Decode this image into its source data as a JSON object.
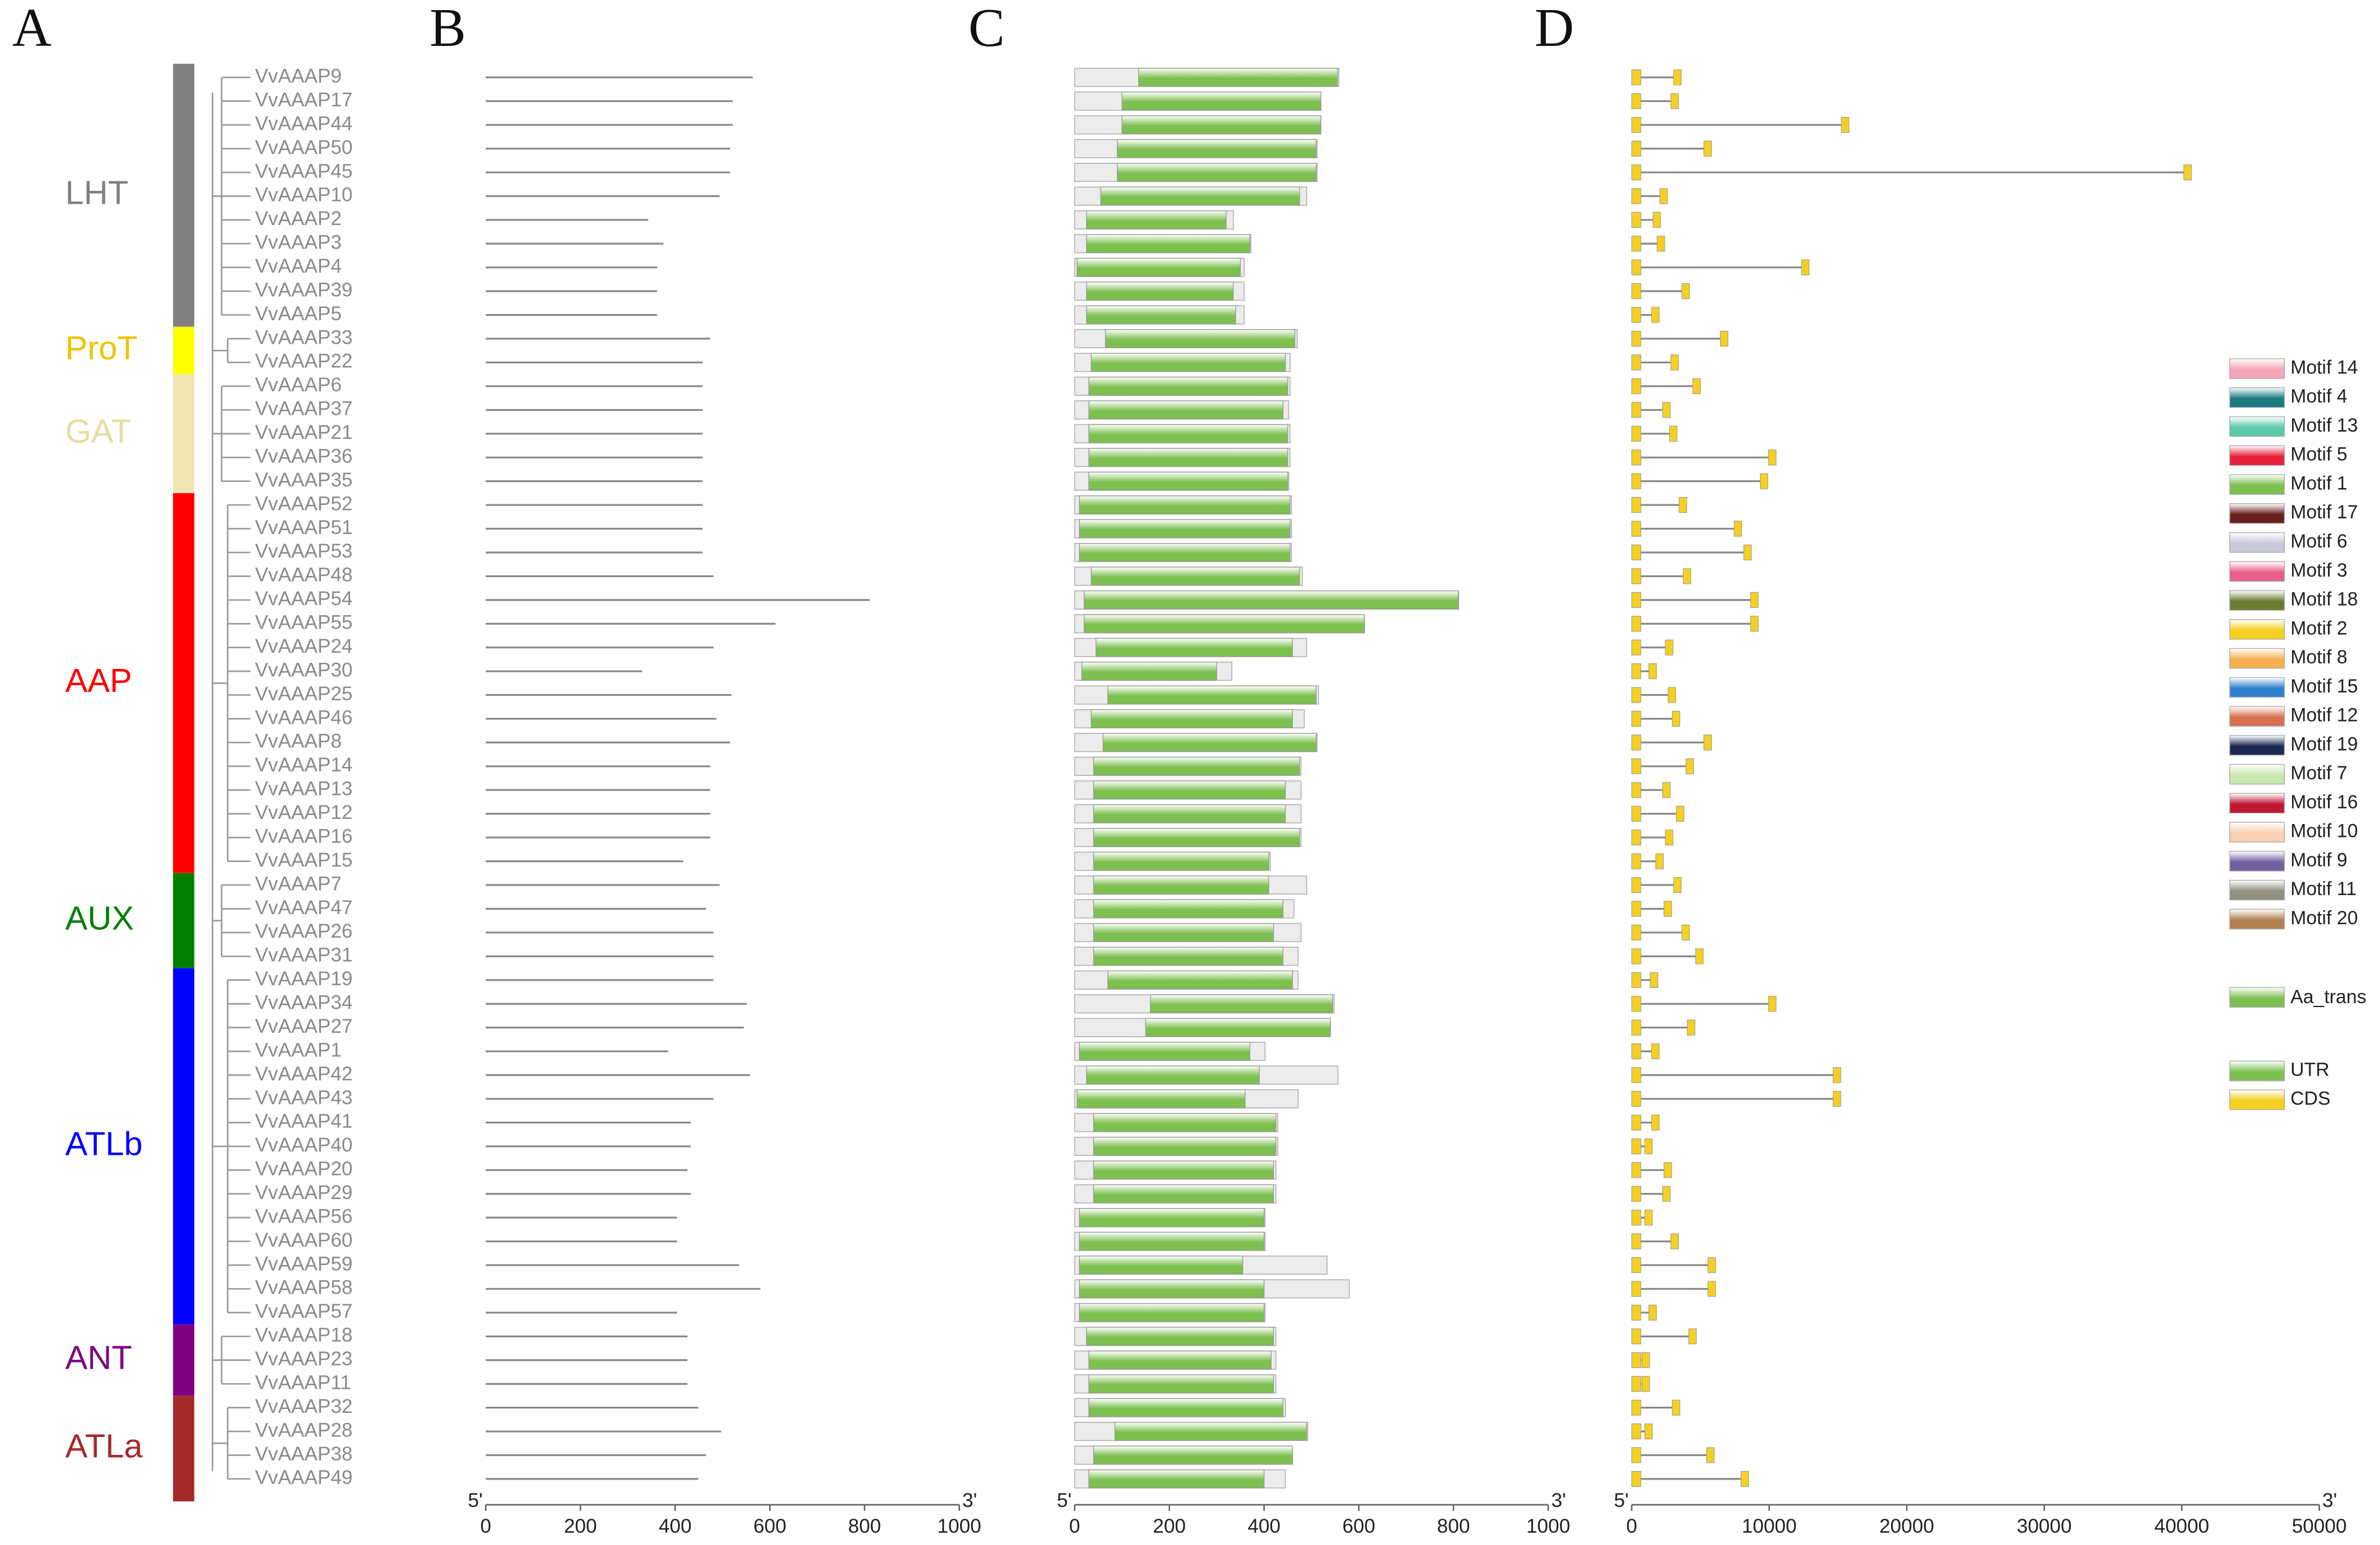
{
  "panel_labels": [
    "A",
    "B",
    "C",
    "D"
  ],
  "genes": [
    "VvAAAP9",
    "VvAAAP17",
    "VvAAAP44",
    "VvAAAP50",
    "VvAAAP45",
    "VvAAAP10",
    "VvAAAP2",
    "VvAAAP3",
    "VvAAAP4",
    "VvAAAP39",
    "VvAAAP5",
    "VvAAAP33",
    "VvAAAP22",
    "VvAAAP6",
    "VvAAAP37",
    "VvAAAP21",
    "VvAAAP36",
    "VvAAAP35",
    "VvAAAP52",
    "VvAAAP51",
    "VvAAAP53",
    "VvAAAP48",
    "VvAAAP54",
    "VvAAAP55",
    "VvAAAP24",
    "VvAAAP30",
    "VvAAAP25",
    "VvAAAP46",
    "VvAAAP8",
    "VvAAAP14",
    "VvAAAP13",
    "VvAAAP12",
    "VvAAAP16",
    "VvAAAP15",
    "VvAAAP7",
    "VvAAAP47",
    "VvAAAP26",
    "VvAAAP31",
    "VvAAAP19",
    "VvAAAP34",
    "VvAAAP27",
    "VvAAAP1",
    "VvAAAP42",
    "VvAAAP43",
    "VvAAAP41",
    "VvAAAP40",
    "VvAAAP20",
    "VvAAAP29",
    "VvAAAP56",
    "VvAAAP60",
    "VvAAAP59",
    "VvAAAP58",
    "VvAAAP57",
    "VvAAAP18",
    "VvAAAP23",
    "VvAAAP11",
    "VvAAAP32",
    "VvAAAP28",
    "VvAAAP38",
    "VvAAAP49"
  ],
  "groups": [
    {
      "name": "LHT",
      "color": "#808080",
      "text_color": "#808080",
      "rows": [
        0,
        10
      ]
    },
    {
      "name": "ProT",
      "color": "#ffff00",
      "text_color": "#f2c200",
      "rows": [
        11,
        12
      ]
    },
    {
      "name": "GAT",
      "color": "#efe6b4",
      "text_color": "#e8dca0",
      "rows": [
        13,
        17
      ]
    },
    {
      "name": "AAP",
      "color": "#ff0000",
      "text_color": "#ff0000",
      "rows": [
        18,
        33
      ]
    },
    {
      "name": "AUX",
      "color": "#008000",
      "text_color": "#008000",
      "rows": [
        34,
        37
      ]
    },
    {
      "name": "ATLb",
      "color": "#0000ff",
      "text_color": "#0000ff",
      "rows": [
        38,
        52
      ]
    },
    {
      "name": "ANT",
      "color": "#800080",
      "text_color": "#800080",
      "rows": [
        53,
        55
      ]
    },
    {
      "name": "ATLa",
      "color": "#a52a2a",
      "text_color": "#a52a2a",
      "rows": [
        56,
        59
      ]
    }
  ],
  "chart_data": [
    {
      "type": "protein",
      "values": [
        564,
        522,
        522,
        516,
        516,
        494,
        343,
        375,
        362,
        362,
        362,
        474,
        458,
        458,
        458,
        458,
        458,
        458,
        458,
        458,
        458,
        481,
        811,
        612,
        481,
        330,
        519,
        487,
        516,
        474,
        474,
        474,
        474,
        417,
        494,
        465,
        481,
        481,
        481,
        551,
        545,
        385,
        558,
        481,
        433,
        433,
        426,
        433,
        404,
        404,
        535,
        580,
        404,
        426,
        426,
        426,
        449,
        497,
        465,
        449
      ],
      "xlim": [
        0,
        1000
      ],
      "xticks": [
        0,
        200,
        400,
        600,
        800,
        1000
      ],
      "end_labels": [
        "5'",
        "3'"
      ],
      "color": "#888888"
    },
    {
      "type": "domain",
      "values": [
        558,
        520,
        520,
        512,
        512,
        490,
        335,
        372,
        358,
        358,
        358,
        470,
        455,
        455,
        452,
        455,
        455,
        452,
        458,
        458,
        458,
        481,
        811,
        612,
        490,
        332,
        515,
        485,
        512,
        478,
        478,
        478,
        478,
        413,
        490,
        463,
        478,
        472,
        472,
        548,
        540,
        402,
        556,
        472,
        429,
        429,
        425,
        425,
        402,
        402,
        533,
        580,
        402,
        425,
        425,
        425,
        445,
        492,
        460,
        445
      ],
      "domains": [
        [
          135,
          555
        ],
        [
          100,
          520
        ],
        [
          100,
          520
        ],
        [
          90,
          510
        ],
        [
          90,
          510
        ],
        [
          55,
          475
        ],
        [
          25,
          320
        ],
        [
          25,
          370
        ],
        [
          5,
          350
        ],
        [
          25,
          335
        ],
        [
          25,
          340
        ],
        [
          65,
          465
        ],
        [
          35,
          445
        ],
        [
          30,
          450
        ],
        [
          30,
          440
        ],
        [
          30,
          450
        ],
        [
          30,
          450
        ],
        [
          30,
          450
        ],
        [
          10,
          455
        ],
        [
          10,
          455
        ],
        [
          10,
          455
        ],
        [
          35,
          475
        ],
        [
          20,
          810
        ],
        [
          20,
          612
        ],
        [
          45,
          460
        ],
        [
          15,
          300
        ],
        [
          70,
          510
        ],
        [
          35,
          460
        ],
        [
          60,
          510
        ],
        [
          40,
          475
        ],
        [
          40,
          445
        ],
        [
          40,
          445
        ],
        [
          40,
          475
        ],
        [
          40,
          410
        ],
        [
          40,
          410
        ],
        [
          40,
          440
        ],
        [
          40,
          420
        ],
        [
          40,
          440
        ],
        [
          70,
          460
        ],
        [
          160,
          545
        ],
        [
          150,
          540
        ],
        [
          10,
          370
        ],
        [
          25,
          390
        ],
        [
          5,
          360
        ],
        [
          40,
          425
        ],
        [
          40,
          425
        ],
        [
          40,
          420
        ],
        [
          40,
          420
        ],
        [
          10,
          400
        ],
        [
          10,
          400
        ],
        [
          10,
          355
        ],
        [
          10,
          400
        ],
        [
          10,
          400
        ],
        [
          25,
          420
        ],
        [
          30,
          415
        ],
        [
          30,
          420
        ],
        [
          30,
          440
        ],
        [
          85,
          490
        ],
        [
          40,
          460
        ],
        [
          30,
          400
        ]
      ],
      "xlim": [
        0,
        1000
      ],
      "xticks": [
        0,
        200,
        400,
        600,
        800,
        1000
      ],
      "end_labels": [
        "5'",
        "3'"
      ],
      "color": "#7dc050"
    },
    {
      "type": "gene_structure",
      "values": [
        3600,
        3400,
        15800,
        5800,
        40700,
        2600,
        2100,
        2400,
        12900,
        4200,
        2000,
        7000,
        3400,
        5000,
        2800,
        3300,
        10500,
        9900,
        4000,
        8000,
        8700,
        4300,
        9200,
        9200,
        3000,
        1800,
        3200,
        3500,
        5800,
        4500,
        2800,
        3800,
        3000,
        2300,
        3600,
        2900,
        4200,
        5200,
        1900,
        10500,
        4600,
        2000,
        15200,
        15200,
        2000,
        1500,
        2900,
        2800,
        1500,
        3400,
        6100,
        6100,
        1800,
        4700,
        1300,
        1300,
        3500,
        1500,
        6000,
        8500
      ],
      "xlim": [
        0,
        50000
      ],
      "xticks": [
        0,
        10000,
        20000,
        30000,
        40000,
        50000
      ],
      "end_labels": [
        "5'",
        "3'"
      ],
      "color": "#888888"
    }
  ],
  "motif_legend": [
    {
      "name": "Motif 14",
      "color": "#f4a6b8"
    },
    {
      "name": "Motif 4",
      "color": "#1a7a80"
    },
    {
      "name": "Motif 13",
      "color": "#5cc8a8"
    },
    {
      "name": "Motif 5",
      "color": "#e8203a"
    },
    {
      "name": "Motif 1",
      "color": "#7dc050"
    },
    {
      "name": "Motif 17",
      "color": "#6a2020"
    },
    {
      "name": "Motif 6",
      "color": "#c8c8d8"
    },
    {
      "name": "Motif 3",
      "color": "#e8608a"
    },
    {
      "name": "Motif 18",
      "color": "#6a7a30"
    },
    {
      "name": "Motif 2",
      "color": "#f5d020"
    },
    {
      "name": "Motif 8",
      "color": "#f5b050"
    },
    {
      "name": "Motif 15",
      "color": "#3080d0"
    },
    {
      "name": "Motif 12",
      "color": "#d87050"
    },
    {
      "name": "Motif 19",
      "color": "#1a2a50"
    },
    {
      "name": "Motif 7",
      "color": "#c8e8b0"
    },
    {
      "name": "Motif 16",
      "color": "#c01830"
    },
    {
      "name": "Motif 10",
      "color": "#f8d0b0"
    },
    {
      "name": "Motif 9",
      "color": "#7060a0"
    },
    {
      "name": "Motif 11",
      "color": "#909080"
    },
    {
      "name": "Motif 20",
      "color": "#b08050"
    }
  ],
  "domain_legend": {
    "name": "Aa_trans",
    "color": "#7dc050"
  },
  "structure_legend": [
    {
      "name": "UTR",
      "color": "#7dc050"
    },
    {
      "name": "CDS",
      "color": "#f5d020"
    }
  ]
}
